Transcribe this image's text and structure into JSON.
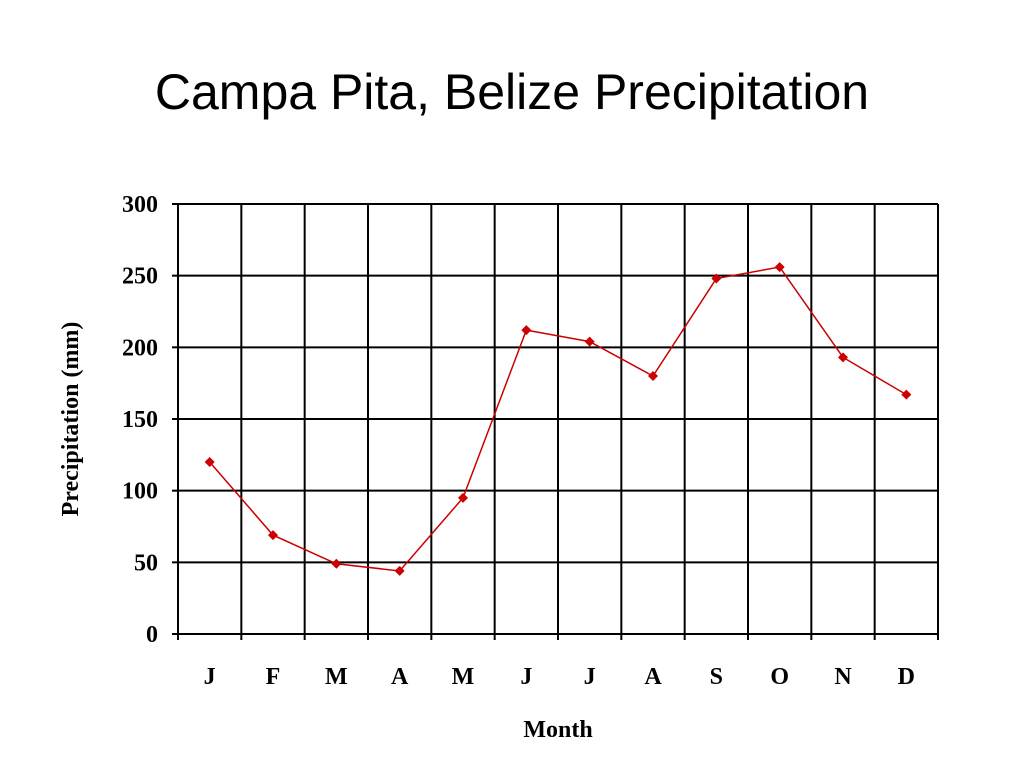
{
  "slide": {
    "title": "Campa Pita, Belize Precipitation"
  },
  "colors": {
    "series": "#cc0000",
    "grid": "#000000",
    "background": "#ffffff"
  },
  "chart_data": {
    "type": "line",
    "title": "",
    "xlabel": "Month",
    "ylabel": "Precipitation (mm)",
    "categories": [
      "J",
      "F",
      "M",
      "A",
      "M",
      "J",
      "J",
      "A",
      "S",
      "O",
      "N",
      "D"
    ],
    "yticks": [
      "0",
      "50",
      "100",
      "150",
      "200",
      "250",
      "300"
    ],
    "ylim": [
      0,
      300
    ],
    "grid": true,
    "legend": "none",
    "series": [
      {
        "values": [
          120,
          69,
          49,
          44,
          95,
          212,
          204,
          180,
          248,
          256,
          193,
          167
        ]
      }
    ]
  }
}
